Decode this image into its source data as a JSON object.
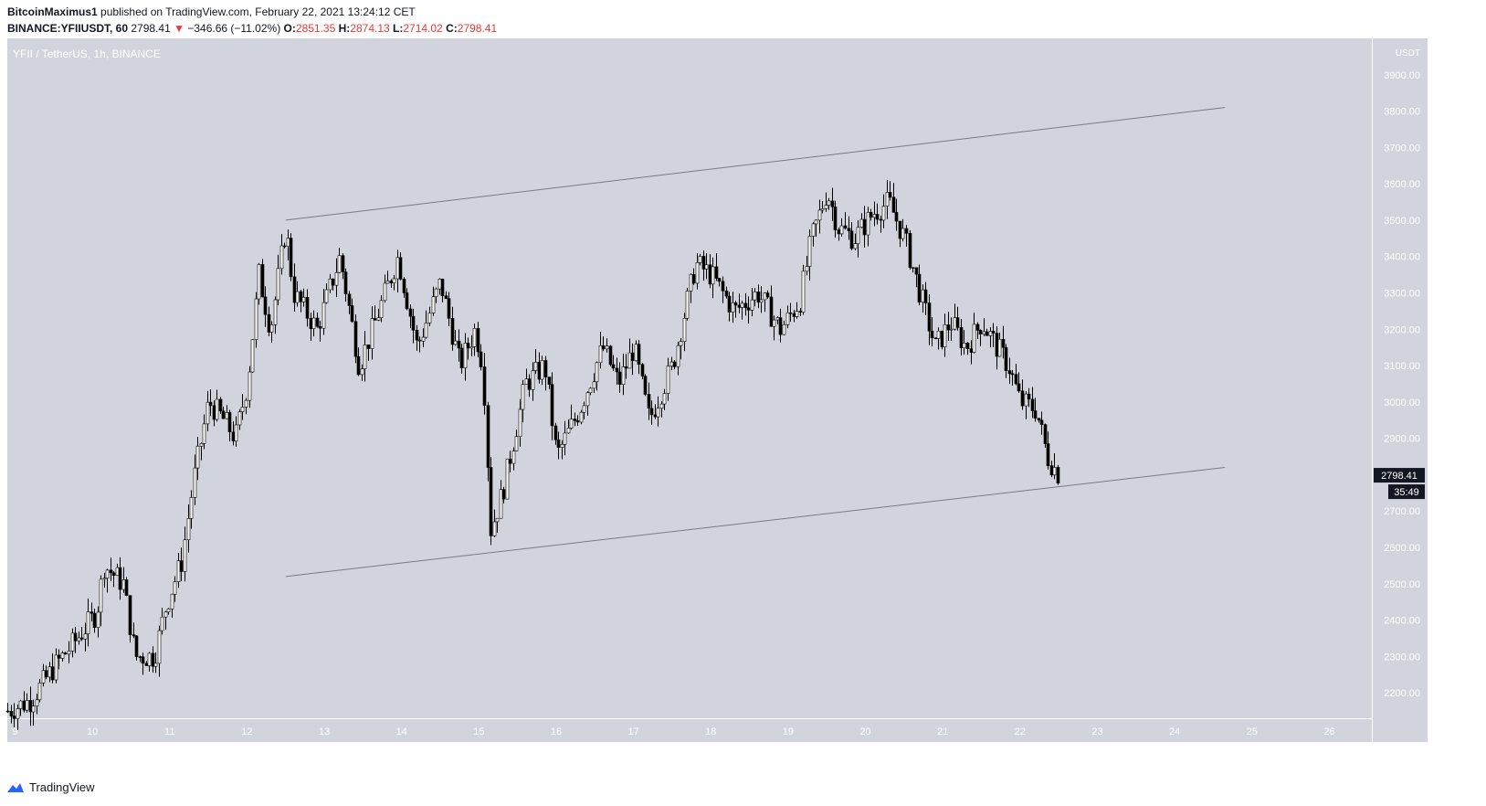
{
  "header": {
    "author": "BitcoinMaximus1",
    "published_text": "published on TradingView.com, February 22, 2021 13:24:12 CET",
    "symbol": "BINANCE:YFIIUSDT, 60",
    "last": "2798.41",
    "change_arrow": "▼",
    "change": "−346.66 (−11.02%)",
    "o_label": "O:",
    "o": "2851.35",
    "h_label": "H:",
    "h": "2874.13",
    "l_label": "L:",
    "l": "2714.02",
    "c_label": "C:",
    "c": "2798.41"
  },
  "pane_title": "YFII / TetherUS, 1h, BINANCE",
  "price_tag": "2798.41",
  "countdown": "35:49",
  "brand": "TradingView",
  "colors": {
    "pane_bg": "#d1d4dc",
    "candle": "#000000",
    "line": "#787b86",
    "accent_red": "#e53935",
    "logo_blue": "#2962ff"
  },
  "chart_data": {
    "type": "candlestick",
    "currency_label": "USDT",
    "x_ticks": [
      "9",
      "10",
      "11",
      "12",
      "13",
      "14",
      "15",
      "16",
      "17",
      "18",
      "19",
      "20",
      "21",
      "22",
      "23",
      "24",
      "25",
      "26"
    ],
    "y_ticks": [
      2200,
      2300,
      2400,
      2500,
      2600,
      2700,
      2800,
      2900,
      3000,
      3100,
      3200,
      3300,
      3400,
      3500,
      3600,
      3700,
      3800,
      3900
    ],
    "ylim": [
      2130,
      4000
    ],
    "xlim": [
      8.9,
      26.55
    ],
    "price_path": [
      [
        8.9,
        2150
      ],
      [
        9.2,
        2180
      ],
      [
        9.5,
        2270
      ],
      [
        9.8,
        2350
      ],
      [
        10.05,
        2420
      ],
      [
        10.15,
        2550
      ],
      [
        10.4,
        2500
      ],
      [
        10.55,
        2300
      ],
      [
        10.8,
        2300
      ],
      [
        10.95,
        2440
      ],
      [
        11.15,
        2560
      ],
      [
        11.3,
        2780
      ],
      [
        11.5,
        3000
      ],
      [
        11.7,
        2950
      ],
      [
        11.85,
        2900
      ],
      [
        12.0,
        3050
      ],
      [
        12.15,
        3350
      ],
      [
        12.3,
        3200
      ],
      [
        12.5,
        3480
      ],
      [
        12.6,
        3300
      ],
      [
        12.9,
        3200
      ],
      [
        13.2,
        3400
      ],
      [
        13.45,
        3100
      ],
      [
        13.7,
        3250
      ],
      [
        13.95,
        3400
      ],
      [
        14.2,
        3150
      ],
      [
        14.5,
        3330
      ],
      [
        14.75,
        3100
      ],
      [
        14.95,
        3200
      ],
      [
        15.05,
        3100
      ],
      [
        15.15,
        2650
      ],
      [
        15.3,
        2750
      ],
      [
        15.6,
        3050
      ],
      [
        15.85,
        3100
      ],
      [
        16.0,
        2850
      ],
      [
        16.3,
        2980
      ],
      [
        16.6,
        3150
      ],
      [
        16.8,
        3050
      ],
      [
        17.0,
        3150
      ],
      [
        17.2,
        2950
      ],
      [
        17.5,
        3100
      ],
      [
        17.8,
        3380
      ],
      [
        18.0,
        3350
      ],
      [
        18.3,
        3250
      ],
      [
        18.6,
        3300
      ],
      [
        18.9,
        3200
      ],
      [
        19.15,
        3280
      ],
      [
        19.3,
        3450
      ],
      [
        19.5,
        3580
      ],
      [
        19.65,
        3480
      ],
      [
        19.85,
        3450
      ],
      [
        20.1,
        3520
      ],
      [
        20.3,
        3550
      ],
      [
        20.5,
        3450
      ],
      [
        20.7,
        3300
      ],
      [
        20.9,
        3150
      ],
      [
        21.1,
        3220
      ],
      [
        21.3,
        3150
      ],
      [
        21.5,
        3220
      ],
      [
        21.7,
        3150
      ],
      [
        21.85,
        3100
      ],
      [
        22.0,
        3000
      ],
      [
        22.2,
        2980
      ],
      [
        22.35,
        2850
      ],
      [
        22.5,
        2798.41
      ]
    ],
    "trendlines": [
      {
        "name": "upper",
        "from": [
          12.5,
          3500
        ],
        "to": [
          24.65,
          3810
        ]
      },
      {
        "name": "lower",
        "from": [
          12.5,
          2520
        ],
        "to": [
          24.65,
          2820
        ]
      }
    ],
    "last_price": 2798.41
  }
}
